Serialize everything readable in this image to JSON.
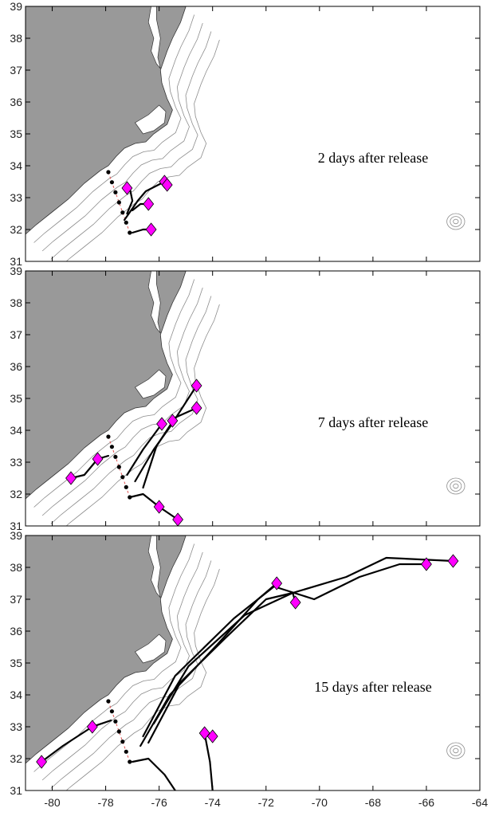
{
  "panels": [
    {
      "title": "2 days after release",
      "drifters": [
        [
          -77.2,
          33.3
        ],
        [
          -75.8,
          33.5
        ],
        [
          -75.7,
          33.4
        ],
        [
          -76.4,
          32.8
        ],
        [
          -76.3,
          32.0
        ]
      ],
      "tracks": [
        [
          [
            -77.2,
            32.5
          ],
          [
            -77.0,
            32.9
          ],
          [
            -77.1,
            33.3
          ]
        ],
        [
          [
            -77.3,
            32.3
          ],
          [
            -76.8,
            32.9
          ],
          [
            -76.5,
            33.2
          ],
          [
            -75.8,
            33.5
          ]
        ],
        [
          [
            -77.0,
            32.6
          ],
          [
            -76.7,
            32.8
          ],
          [
            -76.4,
            32.8
          ]
        ],
        [
          [
            -77.0,
            31.9
          ],
          [
            -76.6,
            32.0
          ],
          [
            -76.3,
            32.0
          ]
        ]
      ]
    },
    {
      "title": "7 days after release",
      "drifters": [
        [
          -79.3,
          32.5
        ],
        [
          -78.3,
          33.1
        ],
        [
          -75.9,
          34.2
        ],
        [
          -75.5,
          34.3
        ],
        [
          -74.6,
          35.4
        ],
        [
          -74.6,
          34.7
        ],
        [
          -76.0,
          31.6
        ],
        [
          -75.3,
          31.2
        ]
      ],
      "tracks": [
        [
          [
            -79.3,
            32.5
          ],
          [
            -78.8,
            32.6
          ],
          [
            -78.3,
            33.1
          ],
          [
            -77.9,
            33.2
          ]
        ],
        [
          [
            -77.2,
            32.6
          ],
          [
            -76.6,
            33.4
          ],
          [
            -75.9,
            34.2
          ]
        ],
        [
          [
            -76.9,
            32.4
          ],
          [
            -76.2,
            33.4
          ],
          [
            -75.6,
            34.1
          ],
          [
            -74.6,
            35.4
          ]
        ],
        [
          [
            -76.6,
            32.2
          ],
          [
            -76.1,
            33.5
          ],
          [
            -75.4,
            34.4
          ],
          [
            -74.6,
            34.7
          ]
        ],
        [
          [
            -77.1,
            31.9
          ],
          [
            -76.6,
            32.0
          ],
          [
            -76.3,
            31.8
          ],
          [
            -76.0,
            31.6
          ],
          [
            -75.3,
            31.2
          ]
        ]
      ]
    },
    {
      "title": "15 days after release",
      "drifters": [
        [
          -80.4,
          31.9
        ],
        [
          -78.5,
          33.0
        ],
        [
          -71.6,
          37.5
        ],
        [
          -70.9,
          36.9
        ],
        [
          -66.0,
          38.1
        ],
        [
          -65.0,
          38.2
        ],
        [
          -74.3,
          32.8
        ],
        [
          -74.0,
          32.7
        ]
      ],
      "tracks": [
        [
          [
            -80.4,
            31.9
          ],
          [
            -79.6,
            32.4
          ],
          [
            -78.5,
            33.0
          ],
          [
            -77.8,
            33.2
          ]
        ],
        [
          [
            -76.7,
            32.4
          ],
          [
            -75.6,
            34.0
          ],
          [
            -73.8,
            35.6
          ],
          [
            -72.3,
            37.0
          ],
          [
            -71.6,
            37.5
          ]
        ],
        [
          [
            -76.4,
            32.5
          ],
          [
            -75.2,
            34.4
          ],
          [
            -73.5,
            35.8
          ],
          [
            -72.0,
            37.0
          ],
          [
            -71.0,
            37.2
          ],
          [
            -70.9,
            36.9
          ]
        ],
        [
          [
            -76.6,
            32.7
          ],
          [
            -75.4,
            34.6
          ],
          [
            -73.2,
            36.4
          ],
          [
            -71.7,
            37.4
          ],
          [
            -70.2,
            37.0
          ],
          [
            -68.5,
            37.7
          ],
          [
            -67.0,
            38.1
          ],
          [
            -66.0,
            38.1
          ]
        ],
        [
          [
            -76.2,
            33.1
          ],
          [
            -74.9,
            34.9
          ],
          [
            -72.8,
            36.5
          ],
          [
            -71.0,
            37.2
          ],
          [
            -69.0,
            37.7
          ],
          [
            -67.5,
            38.3
          ],
          [
            -65.0,
            38.2
          ]
        ],
        [
          [
            -77.0,
            31.9
          ],
          [
            -76.4,
            32.0
          ],
          [
            -75.8,
            31.5
          ],
          [
            -75.4,
            31.0
          ]
        ],
        [
          [
            -74.0,
            31.0
          ],
          [
            -74.1,
            31.9
          ],
          [
            -74.3,
            32.8
          ]
        ]
      ]
    }
  ],
  "release_line": [
    [
      -77.9,
      33.8
    ],
    [
      -77.1,
      31.9
    ]
  ],
  "axes": {
    "lon_ticks": [
      "-80",
      "-78",
      "-76",
      "-74",
      "-72",
      "-70",
      "-68",
      "-66",
      "-64"
    ],
    "lat_ticks": [
      "31",
      "32",
      "33",
      "34",
      "35",
      "36",
      "37",
      "38",
      "39"
    ]
  },
  "colors": {
    "land": "#999999",
    "marker": "#ff00ff",
    "track": "#000000",
    "contour": "#8c8c8c"
  }
}
